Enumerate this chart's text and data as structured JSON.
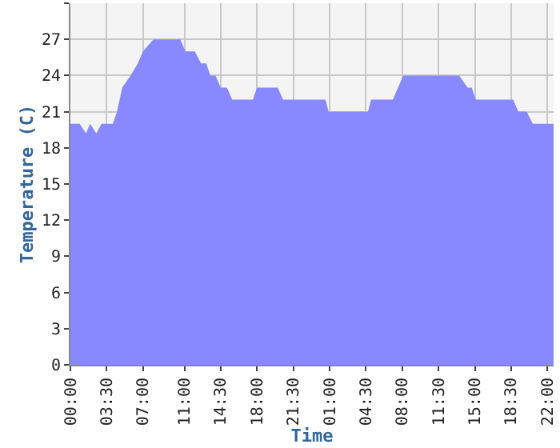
{
  "chart_data": {
    "type": "area",
    "xlabel": "Time",
    "ylabel": "Temperature (C)",
    "x": [
      "2000-01-01T00:00",
      "2000-01-01T00:54",
      "2000-01-01T01:30",
      "2000-01-01T01:54",
      "2000-01-01T02:30",
      "2000-01-01T03:00",
      "2000-01-01T04:06",
      "2000-01-01T04:30",
      "2000-01-01T05:00",
      "2000-01-01T05:48",
      "2000-01-01T06:30",
      "2000-01-01T07:00",
      "2000-01-01T08:00",
      "2000-01-01T10:36",
      "2000-01-01T11:06",
      "2000-01-01T12:00",
      "2000-01-01T12:36",
      "2000-01-01T13:06",
      "2000-01-01T13:30",
      "2000-01-01T14:00",
      "2000-01-01T14:30",
      "2000-01-01T15:06",
      "2000-01-01T15:36",
      "2000-01-01T17:36",
      "2000-01-01T18:00",
      "2000-01-01T20:00",
      "2000-01-01T20:30",
      "2000-01-02T00:36",
      "2000-01-02T00:54",
      "2000-01-02T04:42",
      "2000-01-02T05:00",
      "2000-01-02T07:06",
      "2000-01-02T08:06",
      "2000-01-02T13:30",
      "2000-01-02T14:18",
      "2000-01-02T14:42",
      "2000-01-02T15:06",
      "2000-01-02T18:42",
      "2000-01-02T19:12",
      "2000-01-02T20:00",
      "2000-01-02T20:36",
      "2000-01-02T22:36"
    ],
    "series": [
      {
        "color": "#8888ff",
        "values": [
          20,
          20,
          19.2,
          20,
          19.2,
          20,
          20,
          21,
          23,
          24,
          25,
          26,
          27,
          27,
          26,
          26,
          25,
          25,
          24,
          24,
          23,
          23,
          22,
          22,
          23,
          23,
          22,
          22,
          21,
          21,
          22,
          22,
          24,
          24,
          23,
          23,
          22,
          22,
          21,
          21,
          20,
          20
        ]
      }
    ],
    "xlim": [
      "2000-01-01T00:00",
      "2000-01-02T22:36"
    ],
    "xticks": [
      {
        "value": "2000-01-01T00:00",
        "label": "00:00"
      },
      {
        "value": "2000-01-01T03:30",
        "label": "03:30"
      },
      {
        "value": "2000-01-01T07:00",
        "label": "07:00"
      },
      {
        "value": "2000-01-01T11:00",
        "label": "11:00"
      },
      {
        "value": "2000-01-01T14:30",
        "label": "14:30"
      },
      {
        "value": "2000-01-01T18:00",
        "label": "18:00"
      },
      {
        "value": "2000-01-01T21:30",
        "label": "21:30"
      },
      {
        "value": "2000-01-02T01:00",
        "label": "01:00"
      },
      {
        "value": "2000-01-02T04:30",
        "label": "04:30"
      },
      {
        "value": "2000-01-02T08:00",
        "label": "08:00"
      },
      {
        "value": "2000-01-02T11:30",
        "label": "11:30"
      },
      {
        "value": "2000-01-02T15:00",
        "label": "15:00"
      },
      {
        "value": "2000-01-02T18:30",
        "label": "18:30"
      },
      {
        "value": "2000-01-02T22:00",
        "label": "22:00"
      }
    ],
    "ylim": [
      0,
      30
    ],
    "yticks": [
      0,
      3,
      6,
      9,
      12,
      15,
      18,
      21,
      24,
      27,
      {
        "value": 30,
        "label": null
      }
    ],
    "grid": true
  }
}
